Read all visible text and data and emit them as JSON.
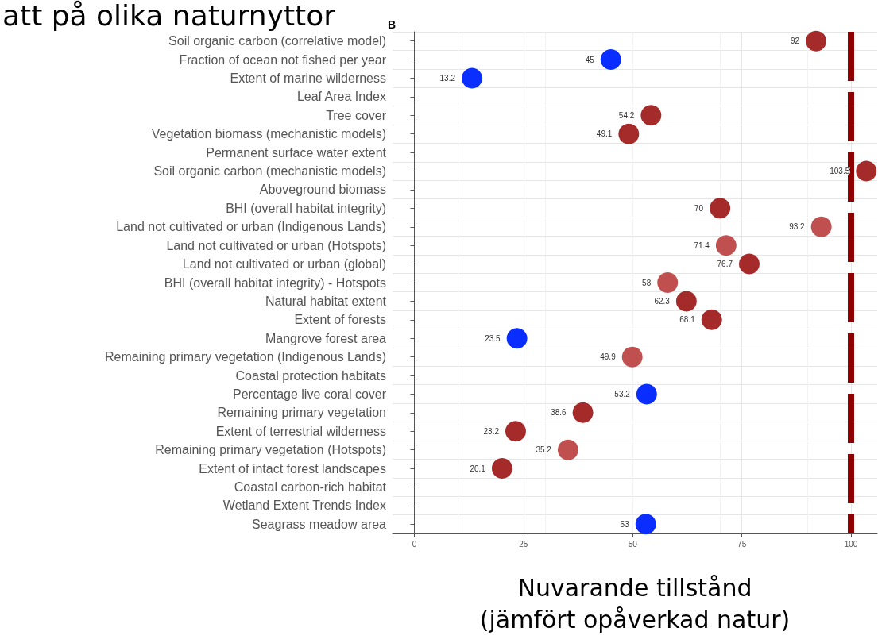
{
  "chart_data": {
    "type": "scatter",
    "orientation": "horizontal",
    "title": "att på olika naturnyttor",
    "xlabel": "Nuvarande tillstånd\n(jämfört opåverkad natur)",
    "annotations": [
      "B"
    ],
    "categories": [
      "Soil organic carbon (correlative model)",
      "Fraction of ocean not fished per year",
      "Extent of marine wilderness",
      "Leaf Area Index",
      "Tree cover",
      "Vegetation biomass (mechanistic models)",
      "Permanent surface water extent",
      "Soil organic carbon (mechanistic models)",
      "Aboveground biomass",
      "BHI (overall habitat integrity)",
      "Land not cultivated or urban (Indigenous Lands)",
      "Land not cultivated or urban (Hotspots)",
      "Land not cultivated or urban (global)",
      "BHI (overall habitat integrity) - Hotspots",
      "Natural habitat extent",
      "Extent of forests",
      "Mangrove forest area",
      "Remaining primary vegetation (Indigenous Lands)",
      "Coastal protection habitats",
      "Percentage live coral cover",
      "Remaining primary vegetation",
      "Extent of terrestrial wilderness",
      "Remaining primary vegetation (Hotspots)",
      "Extent of intact forest landscapes",
      "Coastal carbon-rich habitat",
      "Wetland Extent Trends Index",
      "Seagrass meadow area"
    ],
    "series": [
      {
        "color": "#a52a2a",
        "values": [
          92,
          null,
          null,
          null,
          54.2,
          49.1,
          null,
          103.5,
          null,
          70,
          null,
          null,
          76.7,
          null,
          62.3,
          68.1,
          null,
          null,
          null,
          null,
          38.6,
          23.2,
          null,
          20.1,
          null,
          null,
          null
        ]
      },
      {
        "color": "#c05050",
        "values": [
          null,
          null,
          null,
          null,
          null,
          null,
          null,
          null,
          null,
          null,
          93.2,
          71.4,
          null,
          58,
          null,
          null,
          null,
          49.9,
          null,
          null,
          null,
          null,
          35.2,
          null,
          null,
          null,
          null
        ]
      },
      {
        "color": "#0a2eff",
        "values": [
          null,
          45,
          13.2,
          null,
          null,
          null,
          null,
          null,
          null,
          null,
          null,
          null,
          null,
          null,
          null,
          null,
          23.5,
          null,
          null,
          53.2,
          null,
          null,
          null,
          null,
          null,
          null,
          53
        ]
      }
    ],
    "xlim": [
      -5,
      106
    ],
    "xticks": [
      0,
      25,
      50,
      75,
      100
    ],
    "grid": true,
    "marker": "circle",
    "data_labels": true,
    "legend": false,
    "ref_lines": [
      {
        "axis": "x",
        "value": 100,
        "label": null,
        "color": "#8b0000",
        "line_style": "dashed"
      }
    ]
  }
}
